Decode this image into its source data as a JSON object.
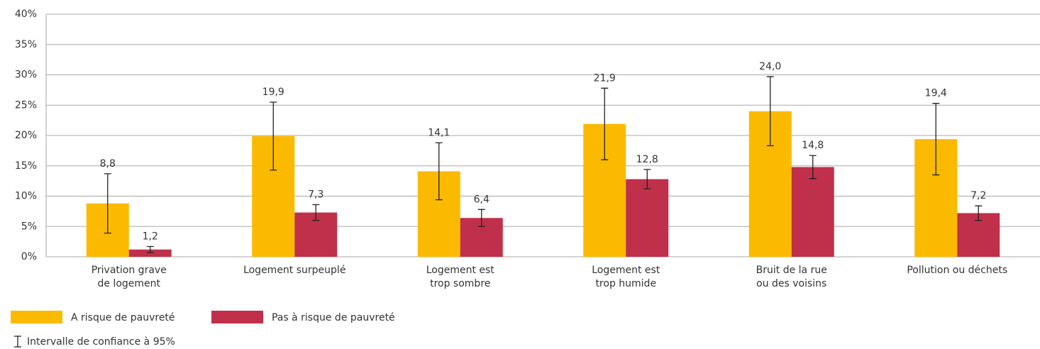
{
  "chart_data": {
    "type": "bar",
    "categories": [
      [
        "Privation grave",
        "de logement"
      ],
      [
        "Logement surpeuplé"
      ],
      [
        "Logement est",
        "trop sombre"
      ],
      [
        "Logement est",
        "trop humide"
      ],
      [
        "Bruit de la rue",
        "ou des voisins"
      ],
      [
        "Pollution ou déchets"
      ]
    ],
    "series": [
      {
        "name": "A risque de pauvreté",
        "color": "#fbba00",
        "values": [
          8.8,
          19.9,
          14.1,
          21.9,
          24.0,
          19.4
        ],
        "value_labels": [
          "8,8",
          "19,9",
          "14,1",
          "21,9",
          "24,0",
          "19,4"
        ],
        "errors": [
          4.9,
          5.6,
          4.7,
          5.9,
          5.7,
          5.9
        ]
      },
      {
        "name": "Pas à risque de pauvreté",
        "color": "#c0304a",
        "values": [
          1.2,
          7.3,
          6.4,
          12.8,
          14.8,
          7.2
        ],
        "value_labels": [
          "1,2",
          "7,3",
          "6,4",
          "12,8",
          "14,8",
          "7,2"
        ],
        "errors": [
          0.5,
          1.3,
          1.4,
          1.6,
          1.9,
          1.2
        ]
      }
    ],
    "error_legend": "Intervalle de confiance à 95%",
    "ylim": [
      0,
      40
    ],
    "yticks": [
      {
        "value": 0,
        "label": "0%"
      },
      {
        "value": 5,
        "label": "5%"
      },
      {
        "value": 10,
        "label": "10%"
      },
      {
        "value": 15,
        "label": "15%"
      },
      {
        "value": 20,
        "label": "20%"
      },
      {
        "value": 25,
        "label": "25%"
      },
      {
        "value": 30,
        "label": "30%"
      },
      {
        "value": 35,
        "label": "35%"
      },
      {
        "value": 40,
        "label": "40%"
      }
    ],
    "grid": true
  }
}
